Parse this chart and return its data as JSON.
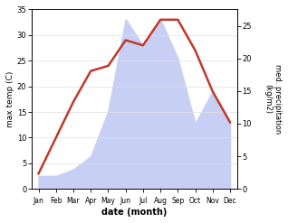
{
  "months": [
    "Jan",
    "Feb",
    "Mar",
    "Apr",
    "May",
    "Jun",
    "Jul",
    "Aug",
    "Sep",
    "Oct",
    "Nov",
    "Dec"
  ],
  "temp": [
    3,
    10,
    17,
    23,
    24,
    29,
    28,
    33,
    33,
    27,
    19,
    13
  ],
  "precip": [
    2,
    2,
    3,
    5,
    12,
    26,
    22,
    26,
    20,
    10,
    15,
    10
  ],
  "temp_color": "#c0392b",
  "precip_fill_color": "#c8cff5",
  "ylabel_left": "max temp (C)",
  "ylabel_right": "med. precipitation\n(kg/m2)",
  "xlabel": "date (month)",
  "ylim_left": [
    0,
    35
  ],
  "ylim_right": [
    0,
    27.5
  ],
  "yticks_left": [
    0,
    5,
    10,
    15,
    20,
    25,
    30,
    35
  ],
  "yticks_right": [
    0,
    5,
    10,
    15,
    20,
    25
  ],
  "temp_linewidth": 1.8
}
